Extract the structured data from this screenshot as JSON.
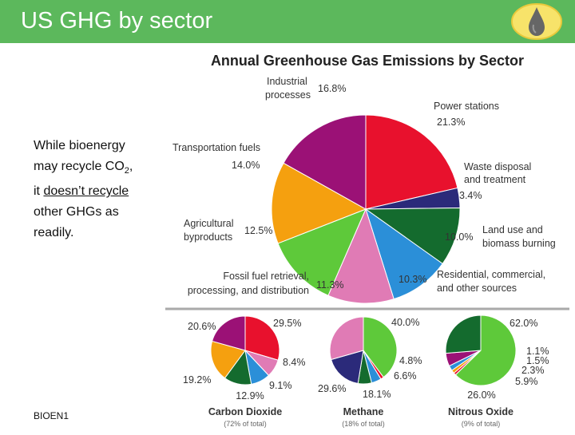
{
  "slide": {
    "title": "US GHG by sector",
    "body_line1": "While bioenergy",
    "body_line2_prefix": "may recycle CO",
    "body_line2_sub": "2",
    "body_line2_suffix": ",",
    "body_line3_prefix": "it ",
    "body_line3_underlined": "doesn’t recycle",
    "body_line4": "other GHGs as",
    "body_line5": "readily.",
    "footer": "BIOEN1",
    "logo_icon": "water-drop-icon"
  },
  "chart_data": [
    {
      "type": "pie",
      "title": "Annual Greenhouse Gas Emissions by Sector",
      "slices": [
        {
          "label": "Power stations",
          "value": 21.3,
          "text": "21.3%",
          "color": "#e8112d"
        },
        {
          "label": "Waste disposal and treatment",
          "value": 3.4,
          "text": "3.4%",
          "color": "#2b2a7a"
        },
        {
          "label": "Land use and biomass burning",
          "value": 10.0,
          "text": "10.0%",
          "color": "#146b2e"
        },
        {
          "label": "Residential, commercial, and other sources",
          "value": 10.3,
          "text": "10.3%",
          "color": "#2b8fd8"
        },
        {
          "label": "Fossil fuel retrieval, processing, and distribution",
          "value": 11.3,
          "text": "11.3%",
          "color": "#e07bb5"
        },
        {
          "label": "Agricultural byproducts",
          "value": 12.5,
          "text": "12.5%",
          "color": "#5ec93a"
        },
        {
          "label": "Transportation fuels",
          "value": 14.0,
          "text": "14.0%",
          "color": "#f5a00f"
        },
        {
          "label": "Industrial processes",
          "value": 16.8,
          "text": "16.8%",
          "color": "#9b1176"
        }
      ]
    },
    {
      "type": "pie",
      "title": "Carbon Dioxide",
      "subtitle": "(72% of total)",
      "slices": [
        {
          "value": 29.5,
          "text": "29.5%",
          "color": "#e8112d"
        },
        {
          "value": 8.4,
          "text": "8.4%",
          "color": "#e07bb5"
        },
        {
          "value": 9.1,
          "text": "9.1%",
          "color": "#2b8fd8"
        },
        {
          "value": 12.9,
          "text": "12.9%",
          "color": "#146b2e"
        },
        {
          "value": 19.2,
          "text": "19.2%",
          "color": "#f5a00f"
        },
        {
          "value": 20.6,
          "text": "20.6%",
          "color": "#9b1176"
        }
      ]
    },
    {
      "type": "pie",
      "title": "Methane",
      "subtitle": "(18% of total)",
      "slices": [
        {
          "value": 40.0,
          "text": "40.0%",
          "color": "#5ec93a"
        },
        {
          "value": 1.5,
          "text": "",
          "color": "#e8112d"
        },
        {
          "value": 4.8,
          "text": "4.8%",
          "color": "#2b8fd8"
        },
        {
          "value": 6.6,
          "text": "6.6%",
          "color": "#146b2e"
        },
        {
          "value": 18.1,
          "text": "18.1%",
          "color": "#2b2a7a"
        },
        {
          "value": 29.6,
          "text": "29.6%",
          "color": "#e07bb5"
        }
      ]
    },
    {
      "type": "pie",
      "title": "Nitrous Oxide",
      "subtitle": "(9% of total)",
      "slices": [
        {
          "value": 62.0,
          "text": "62.0%",
          "color": "#5ec93a"
        },
        {
          "value": 1.1,
          "text": "1.1%",
          "color": "#e8112d"
        },
        {
          "value": 1.5,
          "text": "1.5%",
          "color": "#f5a00f"
        },
        {
          "value": 2.3,
          "text": "2.3%",
          "color": "#2b8fd8"
        },
        {
          "value": 5.9,
          "text": "5.9%",
          "color": "#9b1176"
        },
        {
          "value": 26.0,
          "text": "26.0%",
          "color": "#146b2e"
        }
      ]
    }
  ]
}
